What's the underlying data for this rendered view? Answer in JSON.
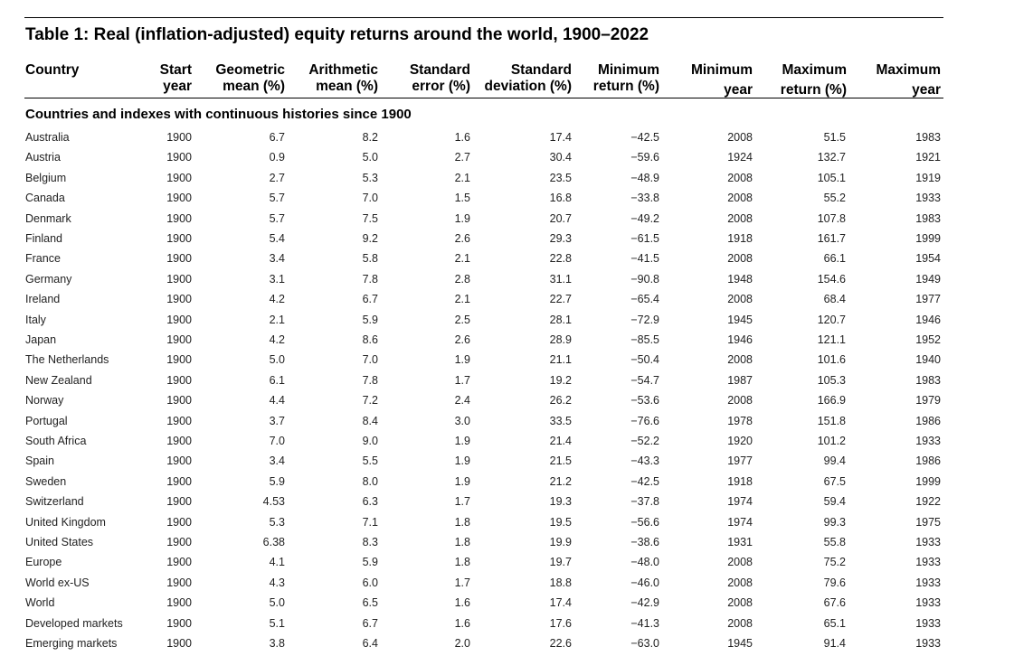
{
  "title": "Table 1: Real (inflation-adjusted) equity returns around the world, 1900–2022",
  "headers": [
    {
      "line1": "Country",
      "line2": ""
    },
    {
      "line1": "Start",
      "line2": "year"
    },
    {
      "line1": "Geometric",
      "line2": "mean (%)"
    },
    {
      "line1": "Arithmetic",
      "line2": "mean (%)"
    },
    {
      "line1": "Standard",
      "line2": "error (%)"
    },
    {
      "line1": "Standard",
      "line2": "deviation (%)"
    },
    {
      "line1": "Minimum",
      "line2": "return (%)"
    },
    {
      "line1": "Minimum",
      "line2": "year"
    },
    {
      "line1": "Maximum",
      "line2": "return (%)"
    },
    {
      "line1": "Maximum",
      "line2": "year"
    }
  ],
  "section_title": "Countries and indexes with continuous histories since 1900",
  "rows": [
    [
      "Australia",
      "1900",
      "6.7",
      "8.2",
      "1.6",
      "17.4",
      "−42.5",
      "2008",
      "51.5",
      "1983"
    ],
    [
      "Austria",
      "1900",
      "0.9",
      "5.0",
      "2.7",
      "30.4",
      "−59.6",
      "1924",
      "132.7",
      "1921"
    ],
    [
      "Belgium",
      "1900",
      "2.7",
      "5.3",
      "2.1",
      "23.5",
      "−48.9",
      "2008",
      "105.1",
      "1919"
    ],
    [
      "Canada",
      "1900",
      "5.7",
      "7.0",
      "1.5",
      "16.8",
      "−33.8",
      "2008",
      "55.2",
      "1933"
    ],
    [
      "Denmark",
      "1900",
      "5.7",
      "7.5",
      "1.9",
      "20.7",
      "−49.2",
      "2008",
      "107.8",
      "1983"
    ],
    [
      "Finland",
      "1900",
      "5.4",
      "9.2",
      "2.6",
      "29.3",
      "−61.5",
      "1918",
      "161.7",
      "1999"
    ],
    [
      "France",
      "1900",
      "3.4",
      "5.8",
      "2.1",
      "22.8",
      "−41.5",
      "2008",
      "66.1",
      "1954"
    ],
    [
      "Germany",
      "1900",
      "3.1",
      "7.8",
      "2.8",
      "31.1",
      "−90.8",
      "1948",
      "154.6",
      "1949"
    ],
    [
      "Ireland",
      "1900",
      "4.2",
      "6.7",
      "2.1",
      "22.7",
      "−65.4",
      "2008",
      "68.4",
      "1977"
    ],
    [
      "Italy",
      "1900",
      "2.1",
      "5.9",
      "2.5",
      "28.1",
      "−72.9",
      "1945",
      "120.7",
      "1946"
    ],
    [
      "Japan",
      "1900",
      "4.2",
      "8.6",
      "2.6",
      "28.9",
      "−85.5",
      "1946",
      "121.1",
      "1952"
    ],
    [
      "The Netherlands",
      "1900",
      "5.0",
      "7.0",
      "1.9",
      "21.1",
      "−50.4",
      "2008",
      "101.6",
      "1940"
    ],
    [
      "New Zealand",
      "1900",
      "6.1",
      "7.8",
      "1.7",
      "19.2",
      "−54.7",
      "1987",
      "105.3",
      "1983"
    ],
    [
      "Norway",
      "1900",
      "4.4",
      "7.2",
      "2.4",
      "26.2",
      "−53.6",
      "2008",
      "166.9",
      "1979"
    ],
    [
      "Portugal",
      "1900",
      "3.7",
      "8.4",
      "3.0",
      "33.5",
      "−76.6",
      "1978",
      "151.8",
      "1986"
    ],
    [
      "South Africa",
      "1900",
      "7.0",
      "9.0",
      "1.9",
      "21.4",
      "−52.2",
      "1920",
      "101.2",
      "1933"
    ],
    [
      "Spain",
      "1900",
      "3.4",
      "5.5",
      "1.9",
      "21.5",
      "−43.3",
      "1977",
      "99.4",
      "1986"
    ],
    [
      "Sweden",
      "1900",
      "5.9",
      "8.0",
      "1.9",
      "21.2",
      "−42.5",
      "1918",
      "67.5",
      "1999"
    ],
    [
      "Switzerland",
      "1900",
      "4.53",
      "6.3",
      "1.7",
      "19.3",
      "−37.8",
      "1974",
      "59.4",
      "1922"
    ],
    [
      "United Kingdom",
      "1900",
      "5.3",
      "7.1",
      "1.8",
      "19.5",
      "−56.6",
      "1974",
      "99.3",
      "1975"
    ],
    [
      "United States",
      "1900",
      "6.38",
      "8.3",
      "1.8",
      "19.9",
      "−38.6",
      "1931",
      "55.8",
      "1933"
    ],
    [
      "Europe",
      "1900",
      "4.1",
      "5.9",
      "1.8",
      "19.7",
      "−48.0",
      "2008",
      "75.2",
      "1933"
    ],
    [
      "World ex-US",
      "1900",
      "4.3",
      "6.0",
      "1.7",
      "18.8",
      "−46.0",
      "2008",
      "79.6",
      "1933"
    ],
    [
      "World",
      "1900",
      "5.0",
      "6.5",
      "1.6",
      "17.4",
      "−42.9",
      "2008",
      "67.6",
      "1933"
    ],
    [
      "Developed markets",
      "1900",
      "5.1",
      "6.7",
      "1.6",
      "17.6",
      "−41.3",
      "2008",
      "65.1",
      "1933"
    ],
    [
      "Emerging markets",
      "1900",
      "3.8",
      "6.4",
      "2.0",
      "22.6",
      "−63.0",
      "1945",
      "91.4",
      "1933"
    ]
  ]
}
